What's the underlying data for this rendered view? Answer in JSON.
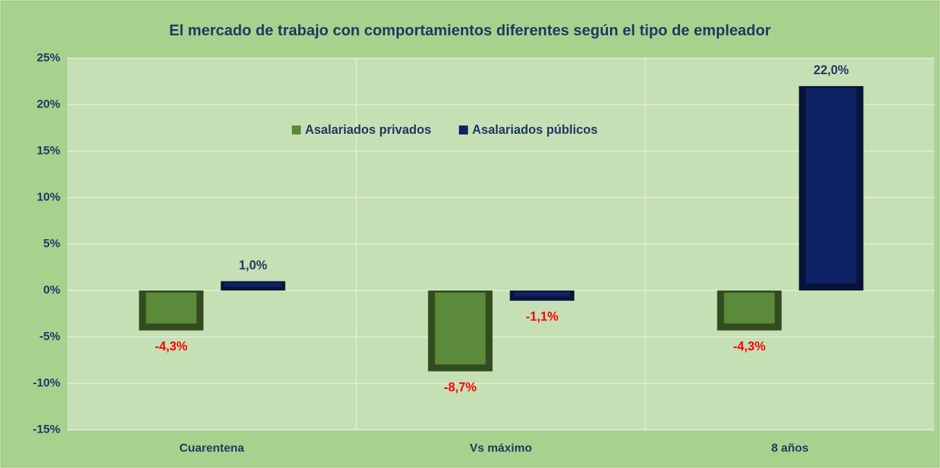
{
  "chart_data": {
    "type": "bar",
    "title": "El mercado de trabajo con comportamientos diferentes según el tipo de empleador",
    "categories": [
      "Cuarentena",
      "Vs máximo",
      "8 años"
    ],
    "series": [
      {
        "name": "Asalariados privados",
        "color": "#5b8a3a",
        "values": [
          -4.3,
          -8.7,
          -4.3
        ],
        "value_labels": [
          "-4,3%",
          "-8,7%",
          "-4,3%"
        ]
      },
      {
        "name": "Asalariados públicos",
        "color": "#0d2366",
        "values": [
          1.0,
          -1.1,
          22.0
        ],
        "value_labels": [
          "1,0%",
          "-1,1%",
          "22,0%"
        ]
      }
    ],
    "ylim": [
      -15,
      25
    ],
    "yticks": [
      {
        "value": -15,
        "label": "-15%"
      },
      {
        "value": -10,
        "label": "-10%"
      },
      {
        "value": -5,
        "label": "-5%"
      },
      {
        "value": 0,
        "label": "0%"
      },
      {
        "value": 5,
        "label": "5%"
      },
      {
        "value": 10,
        "label": "10%"
      },
      {
        "value": 15,
        "label": "15%"
      },
      {
        "value": 20,
        "label": "20%"
      },
      {
        "value": 25,
        "label": "25%"
      }
    ],
    "grid": true
  }
}
